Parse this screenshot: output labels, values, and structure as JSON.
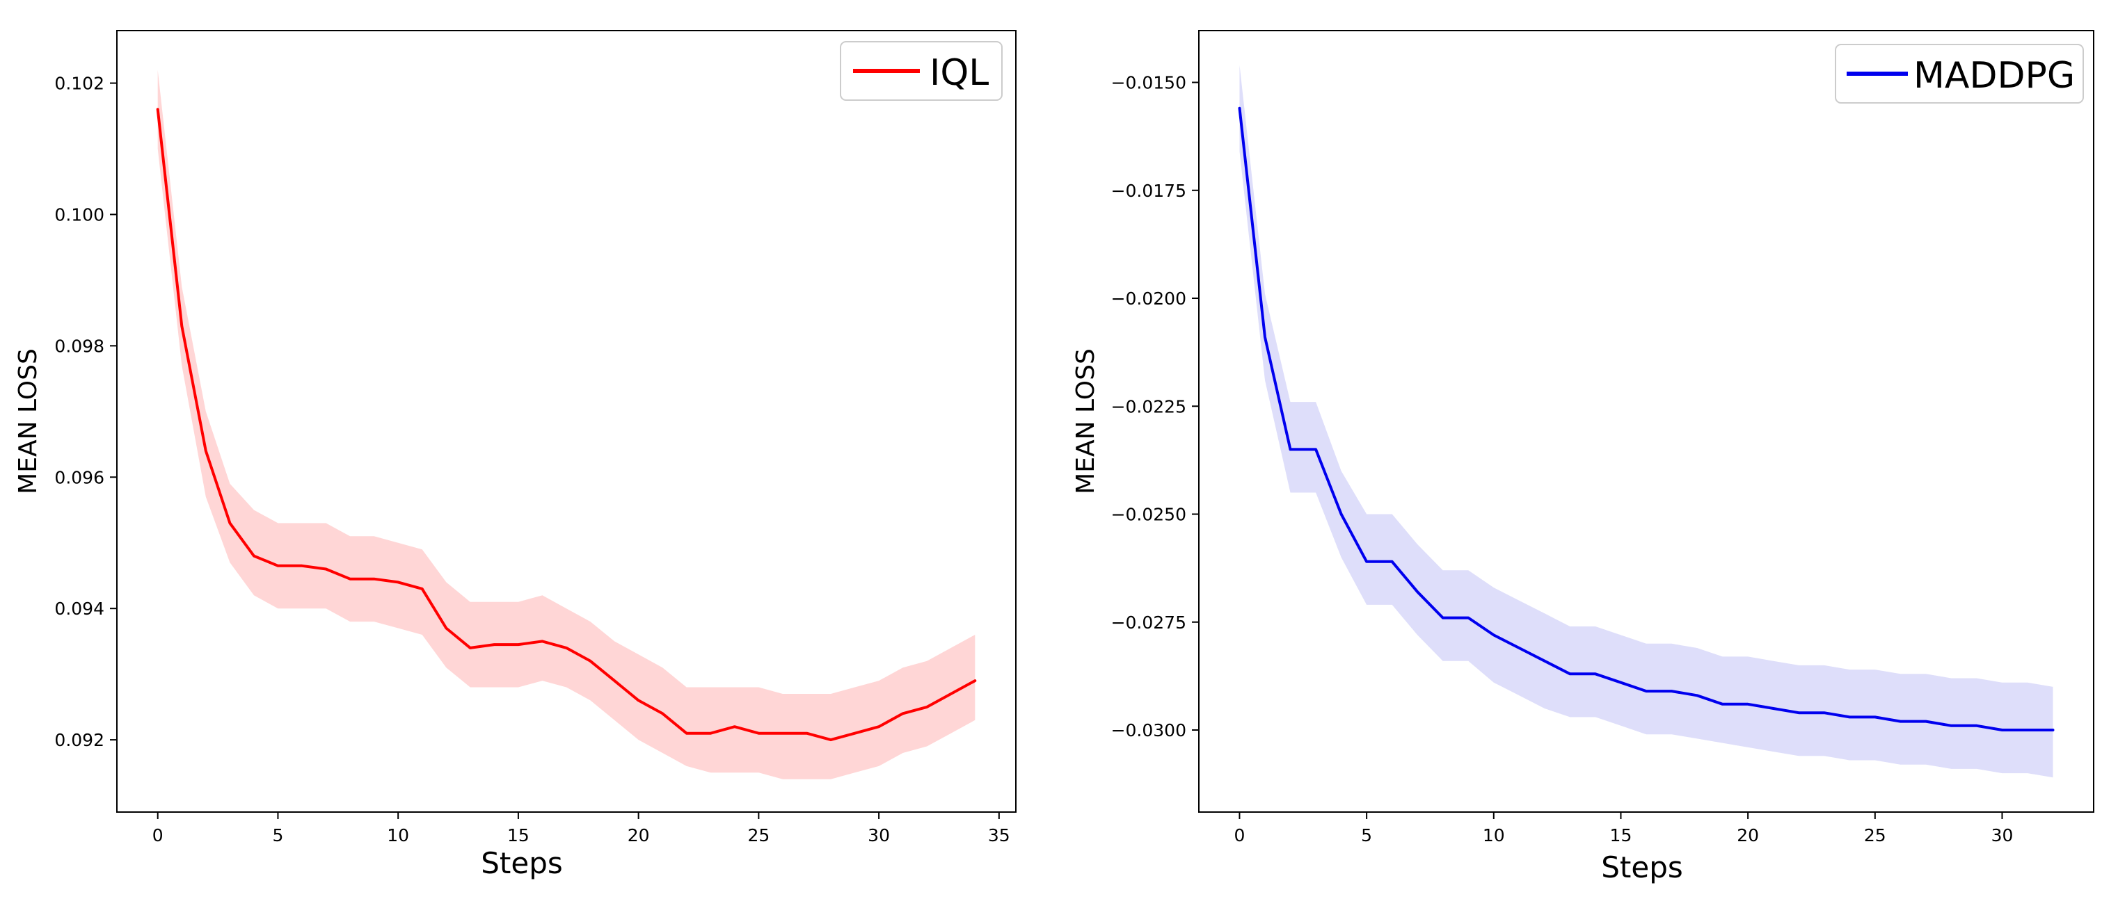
{
  "chart_data": [
    {
      "type": "line",
      "title": "",
      "xlabel": "Steps",
      "ylabel": "MEAN LOSS",
      "xlim": [
        -1.7,
        35.7
      ],
      "ylim": [
        0.0909,
        0.1028
      ],
      "xticks": [
        0,
        5,
        10,
        15,
        20,
        25,
        30,
        35
      ],
      "xtick_labels": [
        "0",
        "5",
        "10",
        "15",
        "20",
        "25",
        "30",
        "35"
      ],
      "yticks": [
        0.092,
        0.094,
        0.096,
        0.098,
        0.1,
        0.102
      ],
      "ytick_labels": [
        "0.092",
        "0.094",
        "0.096",
        "0.098",
        "0.100",
        "0.102"
      ],
      "legend": {
        "position": "top-right",
        "entries": [
          "IQL"
        ]
      },
      "series": [
        {
          "name": "IQL",
          "color": "#ff0000",
          "band_color": "#ffd6d6",
          "x": [
            0,
            1,
            2,
            3,
            4,
            5,
            6,
            7,
            8,
            9,
            10,
            11,
            12,
            13,
            14,
            15,
            16,
            17,
            18,
            19,
            20,
            21,
            22,
            23,
            24,
            25,
            26,
            27,
            28,
            29,
            30,
            31,
            32,
            33,
            34
          ],
          "values": [
            0.1016,
            0.0983,
            0.0964,
            0.0953,
            0.0948,
            0.09465,
            0.09465,
            0.0946,
            0.09445,
            0.09445,
            0.0944,
            0.0943,
            0.0937,
            0.0934,
            0.09345,
            0.09345,
            0.0935,
            0.0934,
            0.0932,
            0.0929,
            0.0926,
            0.0924,
            0.0921,
            0.0921,
            0.0922,
            0.0921,
            0.0921,
            0.0921,
            0.092,
            0.0921,
            0.0922,
            0.0924,
            0.0925,
            0.0927,
            0.0929
          ],
          "lower": [
            0.101,
            0.0977,
            0.0957,
            0.0947,
            0.0942,
            0.094,
            0.094,
            0.094,
            0.0938,
            0.0938,
            0.0937,
            0.0936,
            0.0931,
            0.0928,
            0.0928,
            0.0928,
            0.0929,
            0.0928,
            0.0926,
            0.0923,
            0.092,
            0.0918,
            0.0916,
            0.0915,
            0.0915,
            0.0915,
            0.0914,
            0.0914,
            0.0914,
            0.0915,
            0.0916,
            0.0918,
            0.0919,
            0.0921,
            0.0923
          ],
          "upper": [
            0.1022,
            0.0989,
            0.097,
            0.0959,
            0.0955,
            0.0953,
            0.0953,
            0.0953,
            0.0951,
            0.0951,
            0.095,
            0.0949,
            0.0944,
            0.0941,
            0.0941,
            0.0941,
            0.0942,
            0.094,
            0.0938,
            0.0935,
            0.0933,
            0.0931,
            0.0928,
            0.0928,
            0.0928,
            0.0928,
            0.0927,
            0.0927,
            0.0927,
            0.0928,
            0.0929,
            0.0931,
            0.0932,
            0.0934,
            0.0936
          ]
        }
      ]
    },
    {
      "type": "line",
      "title": "",
      "xlabel": "Steps",
      "ylabel": "MEAN LOSS",
      "xlim": [
        -1.6,
        33.6
      ],
      "ylim": [
        -0.0319,
        -0.0138
      ],
      "xticks": [
        0,
        5,
        10,
        15,
        20,
        25,
        30
      ],
      "xtick_labels": [
        "0",
        "5",
        "10",
        "15",
        "20",
        "25",
        "30"
      ],
      "yticks": [
        -0.015,
        -0.0175,
        -0.02,
        -0.0225,
        -0.025,
        -0.0275,
        -0.03
      ],
      "ytick_labels": [
        "−0.0150",
        "−0.0175",
        "−0.0200",
        "−0.0225",
        "−0.0250",
        "−0.0275",
        "−0.0300"
      ],
      "legend": {
        "position": "top-right",
        "entries": [
          "MADDPG"
        ]
      },
      "series": [
        {
          "name": "MADDPG",
          "color": "#0000ee",
          "band_color": "#dedefa",
          "x": [
            0,
            1,
            2,
            3,
            4,
            5,
            6,
            7,
            8,
            9,
            10,
            11,
            12,
            13,
            14,
            15,
            16,
            17,
            18,
            19,
            20,
            21,
            22,
            23,
            24,
            25,
            26,
            27,
            28,
            29,
            30,
            31,
            32
          ],
          "values": [
            -0.0156,
            -0.0209,
            -0.0235,
            -0.0235,
            -0.025,
            -0.0261,
            -0.0261,
            -0.0268,
            -0.0274,
            -0.0274,
            -0.0278,
            -0.0281,
            -0.0284,
            -0.0287,
            -0.0287,
            -0.0289,
            -0.0291,
            -0.0291,
            -0.0292,
            -0.0294,
            -0.0294,
            -0.0295,
            -0.0296,
            -0.0296,
            -0.0297,
            -0.0297,
            -0.0298,
            -0.0298,
            -0.0299,
            -0.0299,
            -0.03,
            -0.03,
            -0.03
          ],
          "lower": [
            -0.0166,
            -0.0219,
            -0.0245,
            -0.0245,
            -0.026,
            -0.0271,
            -0.0271,
            -0.0278,
            -0.0284,
            -0.0284,
            -0.0289,
            -0.0292,
            -0.0295,
            -0.0297,
            -0.0297,
            -0.0299,
            -0.0301,
            -0.0301,
            -0.0302,
            -0.0303,
            -0.0304,
            -0.0305,
            -0.0306,
            -0.0306,
            -0.0307,
            -0.0307,
            -0.0308,
            -0.0308,
            -0.0309,
            -0.0309,
            -0.031,
            -0.031,
            -0.0311
          ],
          "upper": [
            -0.0146,
            -0.0199,
            -0.0224,
            -0.0224,
            -0.024,
            -0.025,
            -0.025,
            -0.0257,
            -0.0263,
            -0.0263,
            -0.0267,
            -0.027,
            -0.0273,
            -0.0276,
            -0.0276,
            -0.0278,
            -0.028,
            -0.028,
            -0.0281,
            -0.0283,
            -0.0283,
            -0.0284,
            -0.0285,
            -0.0285,
            -0.0286,
            -0.0286,
            -0.0287,
            -0.0287,
            -0.0288,
            -0.0288,
            -0.0289,
            -0.0289,
            -0.029
          ]
        }
      ]
    }
  ]
}
